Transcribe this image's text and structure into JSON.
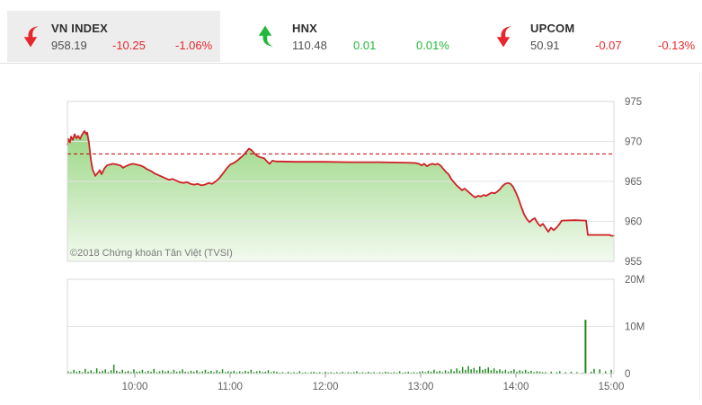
{
  "header": {
    "tickers": [
      {
        "name": "VN INDEX",
        "value": "958.19",
        "change": "-10.25",
        "change_pct": "-1.06%",
        "direction": "down",
        "highlighted": true
      },
      {
        "name": "HNX",
        "value": "110.48",
        "change": "0.01",
        "change_pct": "0.01%",
        "direction": "up",
        "highlighted": false
      },
      {
        "name": "UPCOM",
        "value": "50.91",
        "change": "-0.07",
        "change_pct": "-0.13%",
        "direction": "down",
        "highlighted": false
      }
    ]
  },
  "watermark": "©2018 Chứng khoán Tân Việt (TVSI)",
  "colors": {
    "red": "#e8262d",
    "green": "#22b83c",
    "line_red": "#cf2126",
    "ref_red": "#c40000",
    "area_top": "#9ad784",
    "area_bottom": "#f3faef",
    "volume_bar": "#1e8a1e",
    "grid": "#e4e4e4",
    "panel_border": "#d8d8d8",
    "tick": "#9a9a9a"
  },
  "chart_data": [
    {
      "type": "area",
      "title": "VN-Index intraday price",
      "ylim": [
        955,
        975
      ],
      "y_ticks": [
        {
          "v": 975,
          "label": "975"
        },
        {
          "v": 970,
          "label": "970"
        },
        {
          "v": 965,
          "label": "965"
        },
        {
          "v": 960,
          "label": "960"
        },
        {
          "v": 955,
          "label": "955"
        }
      ],
      "inner_gridlines": [
        970,
        965,
        960
      ],
      "x_ticks": [
        {
          "h": 10,
          "label": "10:00"
        },
        {
          "h": 11,
          "label": "11:00"
        },
        {
          "h": 12,
          "label": "12:00"
        },
        {
          "h": 13,
          "label": "13:00"
        },
        {
          "h": 14,
          "label": "14:00"
        },
        {
          "h": 15,
          "label": "15:00"
        }
      ],
      "reference_line": 968.44,
      "legend": "none",
      "grid": "horizontal",
      "points": [
        [
          9.292,
          969.6
        ],
        [
          9.302,
          970.3
        ],
        [
          9.321,
          969.9
        ],
        [
          9.33,
          970.6
        ],
        [
          9.349,
          970.2
        ],
        [
          9.368,
          970.9
        ],
        [
          9.387,
          970.4
        ],
        [
          9.406,
          970.7
        ],
        [
          9.425,
          970.3
        ],
        [
          9.443,
          970.8
        ],
        [
          9.472,
          971.3
        ],
        [
          9.491,
          970.9
        ],
        [
          9.5,
          971.1
        ],
        [
          9.519,
          969.8
        ],
        [
          9.538,
          967.8
        ],
        [
          9.557,
          966.5
        ],
        [
          9.585,
          965.7
        ],
        [
          9.613,
          966.1
        ],
        [
          9.632,
          966.4
        ],
        [
          9.651,
          965.9
        ],
        [
          9.679,
          966.6
        ],
        [
          9.708,
          967.0
        ],
        [
          9.736,
          967.1
        ],
        [
          9.774,
          967.2
        ],
        [
          9.811,
          967.1
        ],
        [
          9.849,
          967.0
        ],
        [
          9.877,
          966.7
        ],
        [
          9.906,
          966.9
        ],
        [
          9.943,
          967.1
        ],
        [
          9.981,
          967.2
        ],
        [
          10.019,
          967.1
        ],
        [
          10.057,
          967.0
        ],
        [
          10.094,
          966.8
        ],
        [
          10.132,
          966.5
        ],
        [
          10.17,
          966.3
        ],
        [
          10.208,
          966.0
        ],
        [
          10.245,
          965.8
        ],
        [
          10.283,
          965.6
        ],
        [
          10.321,
          965.4
        ],
        [
          10.358,
          965.2
        ],
        [
          10.396,
          965.3
        ],
        [
          10.434,
          965.1
        ],
        [
          10.472,
          964.9
        ],
        [
          10.509,
          964.8
        ],
        [
          10.547,
          964.9
        ],
        [
          10.585,
          964.7
        ],
        [
          10.623,
          964.6
        ],
        [
          10.66,
          964.7
        ],
        [
          10.698,
          964.5
        ],
        [
          10.736,
          964.6
        ],
        [
          10.774,
          964.8
        ],
        [
          10.811,
          964.7
        ],
        [
          10.849,
          965.0
        ],
        [
          10.887,
          965.4
        ],
        [
          10.925,
          966.0
        ],
        [
          10.962,
          966.6
        ],
        [
          11.0,
          967.1
        ],
        [
          11.038,
          967.3
        ],
        [
          11.075,
          967.6
        ],
        [
          11.113,
          968.0
        ],
        [
          11.142,
          968.3
        ],
        [
          11.17,
          968.7
        ],
        [
          11.198,
          969.1
        ],
        [
          11.226,
          968.9
        ],
        [
          11.255,
          968.5
        ],
        [
          11.283,
          968.2
        ],
        [
          11.321,
          968.0
        ],
        [
          11.358,
          967.9
        ],
        [
          11.387,
          967.5
        ],
        [
          11.415,
          967.2
        ],
        [
          11.443,
          967.6
        ],
        [
          11.481,
          967.5
        ],
        [
          11.519,
          967.5
        ],
        [
          11.698,
          967.45
        ],
        [
          11.981,
          967.45
        ],
        [
          12.264,
          967.4
        ],
        [
          12.547,
          967.4
        ],
        [
          12.83,
          967.35
        ],
        [
          12.943,
          967.3
        ],
        [
          12.981,
          967.2
        ],
        [
          13.009,
          967.0
        ],
        [
          13.038,
          967.2
        ],
        [
          13.066,
          966.9
        ],
        [
          13.094,
          967.1
        ],
        [
          13.123,
          967.2
        ],
        [
          13.151,
          967.1
        ],
        [
          13.179,
          967.2
        ],
        [
          13.208,
          967.0
        ],
        [
          13.236,
          966.6
        ],
        [
          13.264,
          966.2
        ],
        [
          13.292,
          965.9
        ],
        [
          13.321,
          965.3
        ],
        [
          13.349,
          964.9
        ],
        [
          13.377,
          964.5
        ],
        [
          13.406,
          964.2
        ],
        [
          13.434,
          963.9
        ],
        [
          13.462,
          964.1
        ],
        [
          13.491,
          963.8
        ],
        [
          13.519,
          963.5
        ],
        [
          13.547,
          963.2
        ],
        [
          13.575,
          963.0
        ],
        [
          13.604,
          963.2
        ],
        [
          13.632,
          963.1
        ],
        [
          13.66,
          963.3
        ],
        [
          13.689,
          963.2
        ],
        [
          13.717,
          963.4
        ],
        [
          13.745,
          963.6
        ],
        [
          13.774,
          963.5
        ],
        [
          13.802,
          963.7
        ],
        [
          13.83,
          964.0
        ],
        [
          13.858,
          964.4
        ],
        [
          13.887,
          964.7
        ],
        [
          13.915,
          964.8
        ],
        [
          13.943,
          964.7
        ],
        [
          13.972,
          964.3
        ],
        [
          14.0,
          963.6
        ],
        [
          14.028,
          962.8
        ],
        [
          14.057,
          961.8
        ],
        [
          14.085,
          960.9
        ],
        [
          14.113,
          960.3
        ],
        [
          14.142,
          959.9
        ],
        [
          14.17,
          960.2
        ],
        [
          14.198,
          960.4
        ],
        [
          14.226,
          959.8
        ],
        [
          14.255,
          959.4
        ],
        [
          14.283,
          959.7
        ],
        [
          14.311,
          959.2
        ],
        [
          14.34,
          958.7
        ],
        [
          14.368,
          959.2
        ],
        [
          14.396,
          958.9
        ],
        [
          14.425,
          959.2
        ],
        [
          14.453,
          959.6
        ],
        [
          14.481,
          960.1
        ],
        [
          14.623,
          960.15
        ],
        [
          14.736,
          960.1
        ],
        [
          14.755,
          958.3
        ],
        [
          14.981,
          958.3
        ],
        [
          15.0,
          958.2
        ],
        [
          15.028,
          958.19
        ]
      ]
    },
    {
      "type": "bar",
      "title": "Trading volume",
      "ylim_m": [
        0,
        20
      ],
      "y_ticks": [
        {
          "m": 20,
          "label": "20M"
        },
        {
          "m": 10,
          "label": "10M"
        },
        {
          "m": 0,
          "label": "0"
        }
      ],
      "inner_gridlines_m": [
        10
      ],
      "start_hour": 9.3,
      "step_hour": 0.03,
      "heights_m": [
        0.5,
        0.3,
        0.8,
        0.4,
        0.6,
        0.3,
        1.0,
        0.4,
        0.7,
        0.3,
        1.1,
        0.4,
        0.6,
        0.9,
        0.3,
        0.7,
        1.9,
        0.6,
        0.4,
        0.8,
        0.4,
        0.6,
        0.3,
        0.9,
        0.4,
        0.5,
        0.8,
        0.3,
        0.6,
        0.4,
        1.0,
        0.3,
        0.5,
        0.7,
        0.4,
        0.6,
        0.3,
        0.8,
        0.4,
        0.5,
        0.9,
        0.4,
        0.3,
        0.6,
        0.4,
        0.7,
        0.3,
        0.5,
        0.8,
        0.4,
        0.6,
        0.3,
        0.7,
        0.4,
        0.9,
        0.3,
        0.5,
        0.4,
        0.6,
        0.3,
        0.5,
        0.3,
        0.6,
        0.4,
        0.8,
        0.3,
        0.5,
        0.6,
        0.3,
        0.4,
        0.7,
        0.3,
        0.5,
        0.4,
        0.2,
        0.3,
        0.15,
        0.4,
        0.2,
        0.3,
        0.2,
        0.5,
        0.2,
        0.3,
        0.15,
        0.3,
        0.4,
        0.2,
        0.3,
        0.15,
        0.4,
        0.2,
        0.3,
        0.2,
        0.3,
        0.2,
        0.4,
        0.15,
        0.3,
        0.2,
        0.3,
        0.5,
        0.2,
        0.3,
        0.2,
        0.4,
        0.2,
        0.3,
        0.15,
        0.3,
        0.2,
        0.4,
        0.3,
        0.2,
        0.3,
        0.2,
        0.5,
        0.2,
        0.3,
        0.4,
        0.2,
        0.3,
        0.2,
        0.4,
        0.5,
        0.3,
        0.6,
        0.4,
        0.8,
        0.4,
        0.6,
        0.3,
        0.7,
        0.4,
        0.9,
        0.5,
        1.1,
        0.6,
        1.4,
        0.8,
        1.6,
        0.9,
        1.2,
        0.7,
        1.5,
        0.8,
        1.0,
        1.3,
        0.7,
        1.1,
        0.6,
        0.9,
        0.5,
        0.8,
        0.4,
        0.6,
        0.9,
        0.4,
        0.7,
        0.5,
        0.8,
        0.4,
        0.6,
        0.3,
        0.5,
        0.4,
        0.3,
        0.3,
        0,
        0.4,
        0,
        0.3,
        0.5,
        0,
        0.3,
        0,
        0.4,
        0,
        0.3,
        0,
        0.2,
        11.4,
        0,
        0.4,
        1.0,
        0,
        0.9,
        0,
        0.5,
        0,
        0.8
      ]
    }
  ]
}
